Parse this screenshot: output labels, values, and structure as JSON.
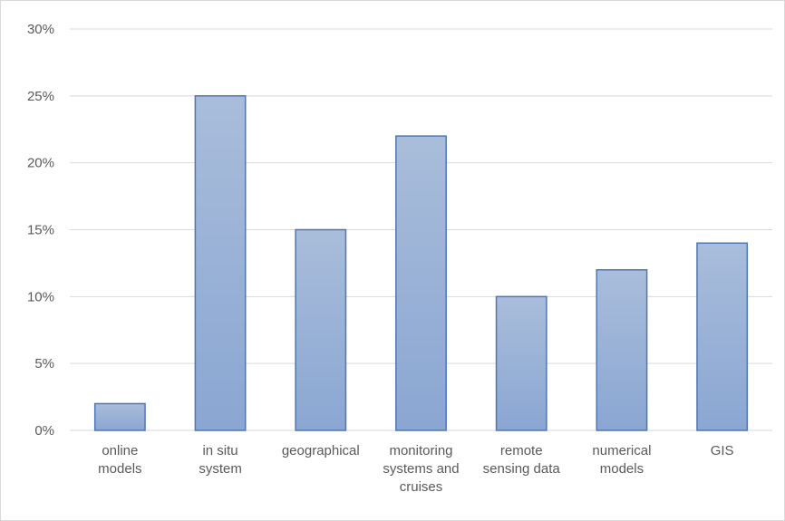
{
  "chart_data": {
    "type": "bar",
    "categories": [
      [
        "online",
        "models"
      ],
      [
        "in situ",
        "system"
      ],
      [
        "geographical"
      ],
      [
        "monitoring",
        "systems and",
        "cruises"
      ],
      [
        "remote",
        "sensing data"
      ],
      [
        "numerical",
        "models"
      ],
      [
        "GIS"
      ]
    ],
    "values": [
      2,
      25,
      15,
      22,
      10,
      12,
      14
    ],
    "yticks": [
      "0%",
      "5%",
      "10%",
      "15%",
      "20%",
      "25%",
      "30%"
    ],
    "ylim": [
      0,
      30
    ],
    "grid": true,
    "colors": {
      "bar_top": "#a9bddb",
      "bar_bottom": "#8aa6d2",
      "bar_edge": "#4f76b3"
    }
  }
}
